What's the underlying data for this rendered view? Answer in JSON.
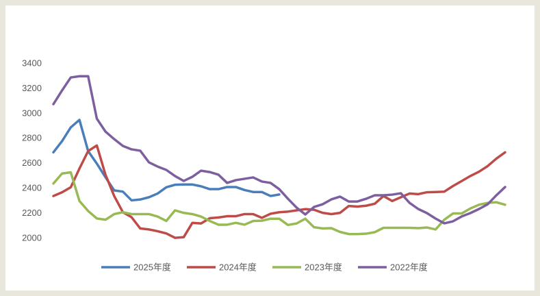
{
  "chart_data": {
    "type": "line",
    "ylim": [
      1800,
      3600
    ],
    "yticks": [
      2000,
      2200,
      2400,
      2600,
      2800,
      3000,
      3200,
      3400
    ],
    "grid": false,
    "legend": "bottom",
    "series": [
      {
        "name": "2025年度",
        "color": "#4a7ebb",
        "values": [
          2690,
          2780,
          2890,
          2950,
          2700,
          2600,
          2490,
          2385,
          2375,
          2305,
          2312,
          2330,
          2360,
          2410,
          2430,
          2432,
          2432,
          2418,
          2395,
          2395,
          2412,
          2412,
          2388,
          2372,
          2372,
          2340,
          2352
        ]
      },
      {
        "name": "2024年度",
        "color": "#be4b48",
        "values": [
          2340,
          2370,
          2410,
          2560,
          2700,
          2745,
          2510,
          2340,
          2210,
          2170,
          2080,
          2072,
          2058,
          2040,
          2005,
          2010,
          2125,
          2120,
          2162,
          2168,
          2178,
          2178,
          2195,
          2195,
          2165,
          2198,
          2210,
          2215,
          2225,
          2235,
          2230,
          2205,
          2195,
          2205,
          2260,
          2255,
          2262,
          2278,
          2340,
          2300,
          2330,
          2360,
          2355,
          2370,
          2372,
          2375,
          2420,
          2460,
          2500,
          2535,
          2580,
          2640,
          2690
        ]
      },
      {
        "name": "2023年度",
        "color": "#98b954",
        "values": [
          2440,
          2520,
          2530,
          2300,
          2220,
          2160,
          2150,
          2195,
          2210,
          2195,
          2195,
          2195,
          2175,
          2140,
          2225,
          2205,
          2195,
          2175,
          2140,
          2110,
          2110,
          2125,
          2110,
          2140,
          2142,
          2158,
          2158,
          2108,
          2120,
          2158,
          2090,
          2080,
          2082,
          2052,
          2035,
          2035,
          2038,
          2050,
          2085,
          2085,
          2085,
          2085,
          2082,
          2088,
          2072,
          2150,
          2200,
          2200,
          2240,
          2270,
          2285,
          2290,
          2270
        ]
      },
      {
        "name": "2022年度",
        "color": "#7d5fa0",
        "values": [
          3076,
          3186,
          3290,
          3300,
          3300,
          2960,
          2856,
          2796,
          2741,
          2714,
          2703,
          2610,
          2576,
          2549,
          2500,
          2461,
          2494,
          2543,
          2532,
          2511,
          2445,
          2467,
          2478,
          2489,
          2456,
          2445,
          2395,
          2318,
          2247,
          2192,
          2252,
          2274,
          2313,
          2335,
          2296,
          2296,
          2318,
          2346,
          2346,
          2351,
          2362,
          2285,
          2236,
          2203,
          2159,
          2121,
          2137,
          2176,
          2203,
          2236,
          2274,
          2346,
          2412
        ]
      }
    ]
  }
}
